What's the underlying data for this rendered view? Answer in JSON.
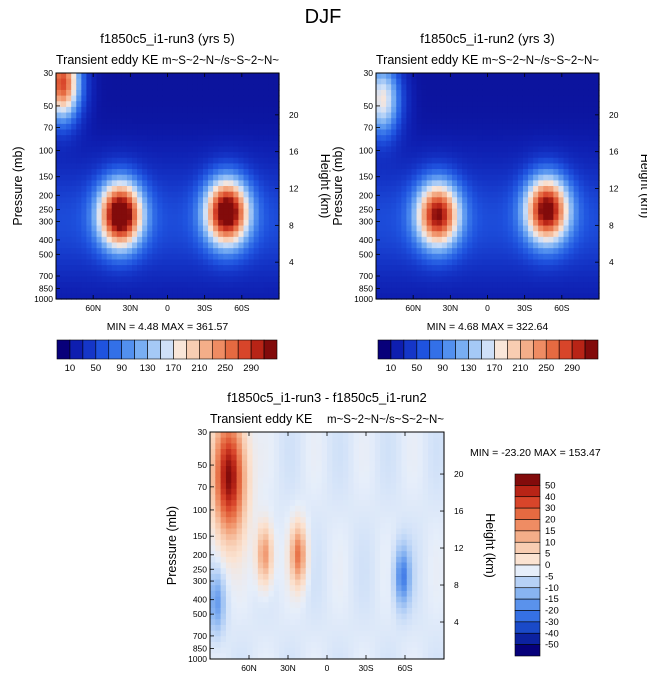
{
  "figure_title": "DJF",
  "chart_data": [
    {
      "type": "heatmap",
      "title": "f1850c5_i1-run3 (yrs 5)",
      "subtitle_left": "Transient eddy KE",
      "subtitle_right": "m~S~2~N~/s~S~2~N~",
      "xlabel": "",
      "ylabel": "Pressure (mb)",
      "ylabel_right": "Height (km)",
      "x_ticks": [
        {
          "label": "60N",
          "lat": 60
        },
        {
          "label": "30N",
          "lat": 30
        },
        {
          "label": "0",
          "lat": 0
        },
        {
          "label": "30S",
          "lat": -30
        },
        {
          "label": "60S",
          "lat": -60
        }
      ],
      "y_ticks": [
        "30",
        "50",
        "70",
        "100",
        "150",
        "200",
        "250",
        "300",
        "400",
        "500",
        "700",
        "850",
        "1000"
      ],
      "height_ticks": [
        "20",
        "16",
        "12",
        "8",
        "4"
      ],
      "xlim_lat": [
        90,
        -90
      ],
      "ylim_mb": [
        30,
        1000
      ],
      "stats_text": "MIN =  4.48  MAX = 361.57",
      "min": 4.48,
      "max": 361.57,
      "features": [
        {
          "lat": 38,
          "p_mb": 270,
          "value": 350
        },
        {
          "lat": -48,
          "p_mb": 260,
          "value": 340
        },
        {
          "lat": 85,
          "p_mb": 35,
          "value": 300
        }
      ]
    },
    {
      "type": "heatmap",
      "title": "f1850c5_i1-run2 (yrs 3)",
      "subtitle_left": "Transient eddy KE",
      "subtitle_right": "m~S~2~N~/s~S~2~N~",
      "xlabel": "",
      "ylabel": "Pressure (mb)",
      "ylabel_right": "Height (km)",
      "x_ticks": [
        {
          "label": "60N",
          "lat": 60
        },
        {
          "label": "30N",
          "lat": 30
        },
        {
          "label": "0",
          "lat": 0
        },
        {
          "label": "30S",
          "lat": -30
        },
        {
          "label": "60S",
          "lat": -60
        }
      ],
      "y_ticks": [
        "30",
        "50",
        "70",
        "100",
        "150",
        "200",
        "250",
        "300",
        "400",
        "500",
        "700",
        "850",
        "1000"
      ],
      "height_ticks": [
        "20",
        "16",
        "12",
        "8",
        "4"
      ],
      "xlim_lat": [
        90,
        -90
      ],
      "ylim_mb": [
        30,
        1000
      ],
      "stats_text": "MIN =  4.68  MAX = 322.64",
      "min": 4.68,
      "max": 322.64,
      "features": [
        {
          "lat": 40,
          "p_mb": 270,
          "value": 300
        },
        {
          "lat": -48,
          "p_mb": 250,
          "value": 320
        },
        {
          "lat": 85,
          "p_mb": 45,
          "value": 200
        }
      ]
    },
    {
      "type": "heatmap",
      "title": "f1850c5_i1-run3 - f1850c5_i1-run2",
      "subtitle_left": "Transient eddy KE",
      "subtitle_right": "m~S~2~N~/s~S~2~N~",
      "xlabel": "",
      "ylabel": "Pressure (mb)",
      "ylabel_right": "Height (km)",
      "x_ticks": [
        {
          "label": "60N",
          "lat": 60
        },
        {
          "label": "30N",
          "lat": 30
        },
        {
          "label": "0",
          "lat": 0
        },
        {
          "label": "30S",
          "lat": -30
        },
        {
          "label": "60S",
          "lat": -60
        }
      ],
      "y_ticks": [
        "30",
        "50",
        "70",
        "100",
        "150",
        "200",
        "250",
        "300",
        "400",
        "500",
        "700",
        "850",
        "1000"
      ],
      "height_ticks": [
        "20",
        "16",
        "12",
        "8",
        "4"
      ],
      "xlim_lat": [
        90,
        -90
      ],
      "ylim_mb": [
        30,
        1000
      ],
      "stats_text": "MIN = -23.20  MAX = 153.47",
      "min": -23.2,
      "max": 153.47,
      "features": [
        {
          "lat": 75,
          "p_mb": 60,
          "value": 60
        },
        {
          "lat": 48,
          "p_mb": 200,
          "value": 30
        },
        {
          "lat": 22,
          "p_mb": 200,
          "value": 35
        },
        {
          "lat": -58,
          "p_mb": 280,
          "value": -25
        },
        {
          "lat": 85,
          "p_mb": 420,
          "value": -18
        }
      ]
    }
  ],
  "colorbars": [
    {
      "name": "absolute",
      "orientation": "horizontal",
      "labels": [
        "10",
        "50",
        "90",
        "130",
        "170",
        "210",
        "250",
        "290"
      ],
      "colors": [
        "#08007a",
        "#0e1eb0",
        "#1536c8",
        "#1f53df",
        "#3370e8",
        "#5290ef",
        "#78aef3",
        "#a5c9f6",
        "#cfe0f8",
        "#f9e6d9",
        "#f8cdb2",
        "#f4ae89",
        "#ef8c63",
        "#e56a41",
        "#d8452a",
        "#b82416",
        "#820b0b"
      ]
    },
    {
      "name": "difference",
      "orientation": "vertical",
      "labels": [
        "50",
        "40",
        "30",
        "20",
        "15",
        "10",
        "5",
        "0",
        "-5",
        "-10",
        "-15",
        "-20",
        "-30",
        "-40",
        "-50"
      ],
      "colors": [
        "#820b0b",
        "#b82416",
        "#d8452a",
        "#e56a41",
        "#ef8c63",
        "#f4ae89",
        "#f8cdb2",
        "#fbe3d2",
        "#e6eefa",
        "#b6d1f6",
        "#88b4f1",
        "#5a92ec",
        "#3570e4",
        "#1a4ac8",
        "#0c22a0",
        "#06007a"
      ]
    }
  ]
}
